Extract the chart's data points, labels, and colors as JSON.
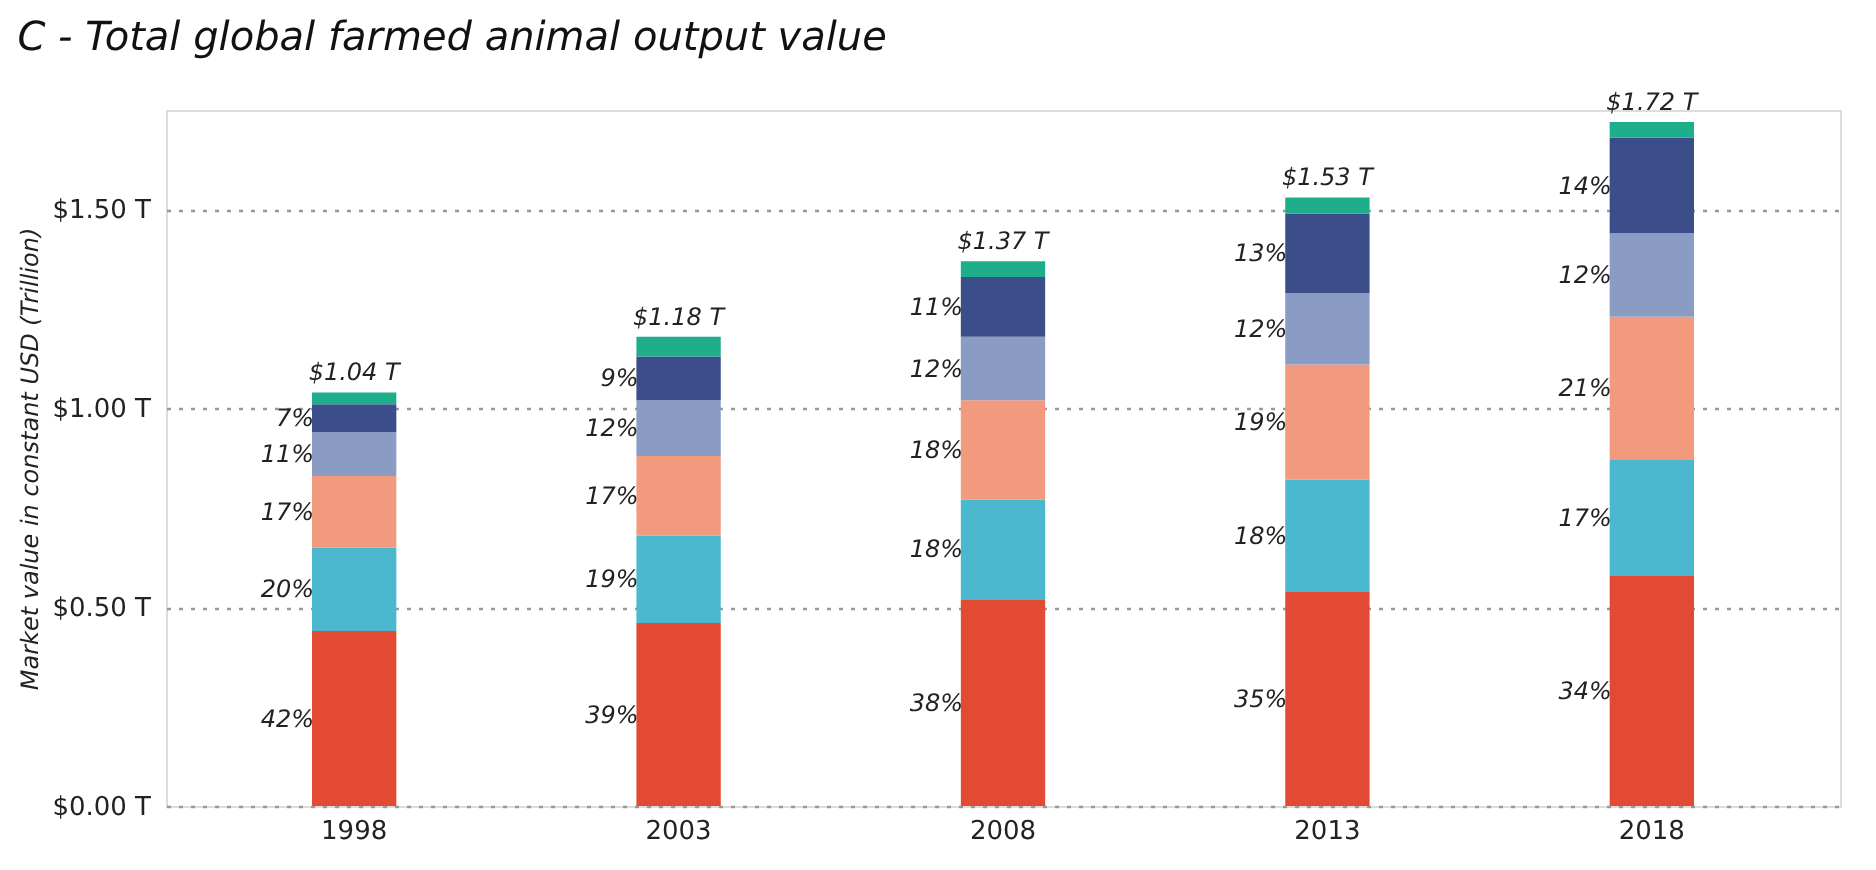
{
  "chart_data": {
    "type": "bar",
    "stacked": true,
    "title": "C - Total global farmed animal output value",
    "ylabel": "Market value in constant USD (Trillion)",
    "categories": [
      "1998",
      "2003",
      "2008",
      "2013",
      "2018"
    ],
    "series": [
      {
        "color": "#e34a33",
        "values": [
          0.44,
          0.46,
          0.52,
          0.54,
          0.58
        ]
      },
      {
        "color": "#4bb8d0",
        "values": [
          0.21,
          0.22,
          0.25,
          0.28,
          0.29
        ]
      },
      {
        "color": "#f19a7e",
        "values": [
          0.18,
          0.2,
          0.25,
          0.29,
          0.36
        ]
      },
      {
        "color": "#8a9bc4",
        "values": [
          0.11,
          0.14,
          0.16,
          0.18,
          0.21
        ]
      },
      {
        "color": "#3b4e8a",
        "values": [
          0.07,
          0.11,
          0.15,
          0.2,
          0.24
        ]
      },
      {
        "color": "#1fae8c",
        "values": [
          0.03,
          0.05,
          0.04,
          0.04,
          0.04
        ]
      }
    ],
    "totals": [
      "$1.04 T",
      "$1.18 T",
      "$1.37 T",
      "$1.53 T",
      "$1.72 T"
    ],
    "annotations": [
      "42%",
      "20%",
      "17%",
      "11%",
      "7%",
      "39%",
      "19%",
      "17%",
      "12%",
      "9%",
      "38%",
      "18%",
      "18%",
      "12%",
      "11%",
      "35%",
      "18%",
      "19%",
      "12%",
      "13%",
      "34%",
      "17%",
      "21%",
      "12%",
      "14%"
    ],
    "ylim": [
      0,
      1.75
    ],
    "yticks": [
      {
        "value": 0,
        "label": "$0.00 T"
      },
      {
        "value": 0.5,
        "label": "$0.50 T"
      },
      {
        "value": 1,
        "label": "$1.00 T"
      },
      {
        "value": 1.5,
        "label": "$1.50 T"
      }
    ],
    "grid": "y",
    "legend": false
  }
}
